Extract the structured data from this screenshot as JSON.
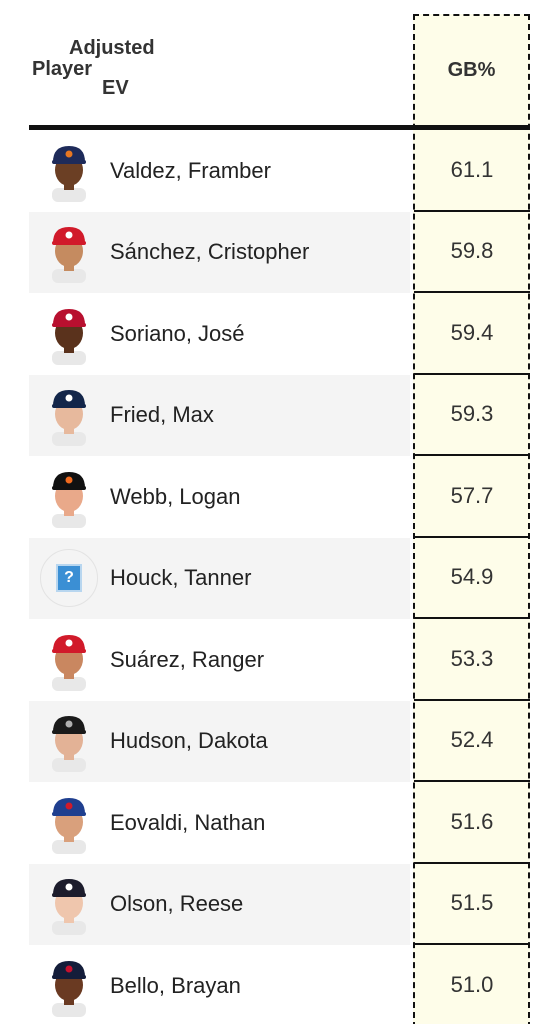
{
  "header": {
    "player": "Player",
    "adjusted": "Adjusted",
    "ev": "EV",
    "gb": "GB%"
  },
  "rows": [
    {
      "name": "Valdez, Framber",
      "gb": "61.1",
      "cap": "#1e2b5a",
      "logo": "#e87722",
      "skin": "#6b3f24"
    },
    {
      "name": "Sánchez, Cristopher",
      "gb": "59.8",
      "cap": "#d11a2a",
      "logo": "#ffffff",
      "skin": "#c58b60"
    },
    {
      "name": "Soriano, José",
      "gb": "59.4",
      "cap": "#b8102f",
      "logo": "#ffffff",
      "skin": "#5a321c"
    },
    {
      "name": "Fried, Max",
      "gb": "59.3",
      "cap": "#13264a",
      "logo": "#ffffff",
      "skin": "#e7b99d"
    },
    {
      "name": "Webb, Logan",
      "gb": "57.7",
      "cap": "#111111",
      "logo": "#f26b1f",
      "skin": "#e9a98a"
    },
    {
      "name": "Houck, Tanner",
      "gb": "54.9",
      "cap": "",
      "logo": "",
      "skin": "",
      "unknown": true
    },
    {
      "name": "Suárez, Ranger",
      "gb": "53.3",
      "cap": "#d11a2a",
      "logo": "#ffffff",
      "skin": "#c98760"
    },
    {
      "name": "Hudson, Dakota",
      "gb": "52.4",
      "cap": "#1a1a1a",
      "logo": "#b0b0b0",
      "skin": "#e3b296"
    },
    {
      "name": "Eovaldi, Nathan",
      "gb": "51.6",
      "cap": "#1f3f8f",
      "logo": "#d11a2a",
      "skin": "#d9a07c"
    },
    {
      "name": "Olson, Reese",
      "gb": "51.5",
      "cap": "#1c1c2c",
      "logo": "#ffffff",
      "skin": "#efc6ad"
    },
    {
      "name": "Bello, Brayan",
      "gb": "51.0",
      "cap": "#141d3a",
      "logo": "#c8102e",
      "skin": "#6a3a22"
    }
  ]
}
